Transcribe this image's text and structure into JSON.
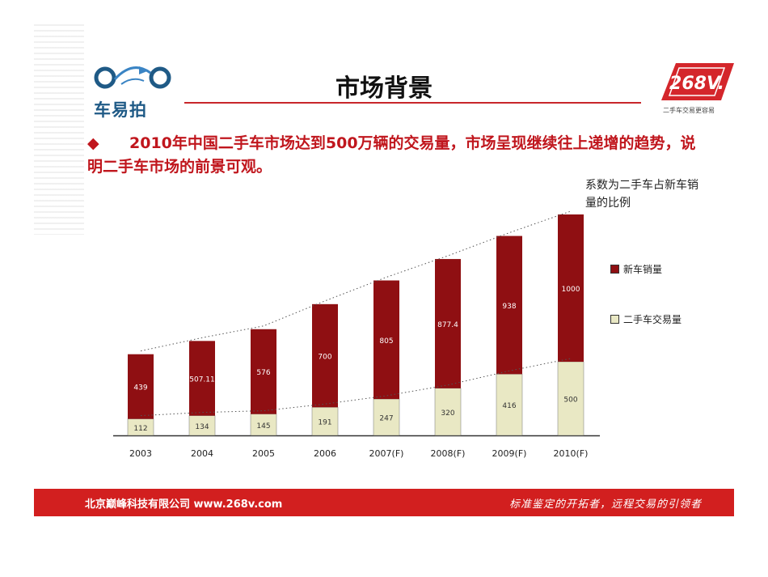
{
  "header": {
    "logo_left_text": "车易拍",
    "title": "市场背景",
    "logo_right_brand": "268V.",
    "logo_right_tagline": "二手车交易更容易"
  },
  "bullet": {
    "symbol": "◆",
    "text": "2010年中国二手车市场达到500万辆的交易量，市场呈现继续往上递增的趋势，说明二手车市场的前景可观。"
  },
  "annotation": "系数为二手车占新车销量的比例",
  "colors": {
    "new_car": "#8f0f12",
    "used_car": "#e9e8c4",
    "accent": "#c8272b",
    "footer": "#d21f1f"
  },
  "chart_data": {
    "type": "bar",
    "stacked": true,
    "categories": [
      "2003",
      "2004",
      "2005",
      "2006",
      "2007(F)",
      "2008(F)",
      "2009(F)",
      "2010(F)"
    ],
    "series": [
      {
        "name": "二手车交易量",
        "values": [
          112,
          134,
          145,
          191,
          247,
          320,
          416,
          500
        ],
        "labels": [
          "112",
          "134",
          "145",
          "191",
          "247",
          "320",
          "416",
          "500"
        ]
      },
      {
        "name": "新车销量",
        "values": [
          439,
          507.11,
          576,
          700,
          805,
          877.4,
          938,
          1000
        ],
        "labels": [
          "439",
          "507.11",
          "576",
          "700",
          "805",
          "877.4",
          "938",
          "1000"
        ]
      }
    ],
    "legend_position": "right",
    "grid": false,
    "dotted_trend_lines": true
  },
  "footer": {
    "left": "北京巅峰科技有限公司 www.268v.com",
    "right": "标准鉴定的开拓者，远程交易的引领者"
  }
}
